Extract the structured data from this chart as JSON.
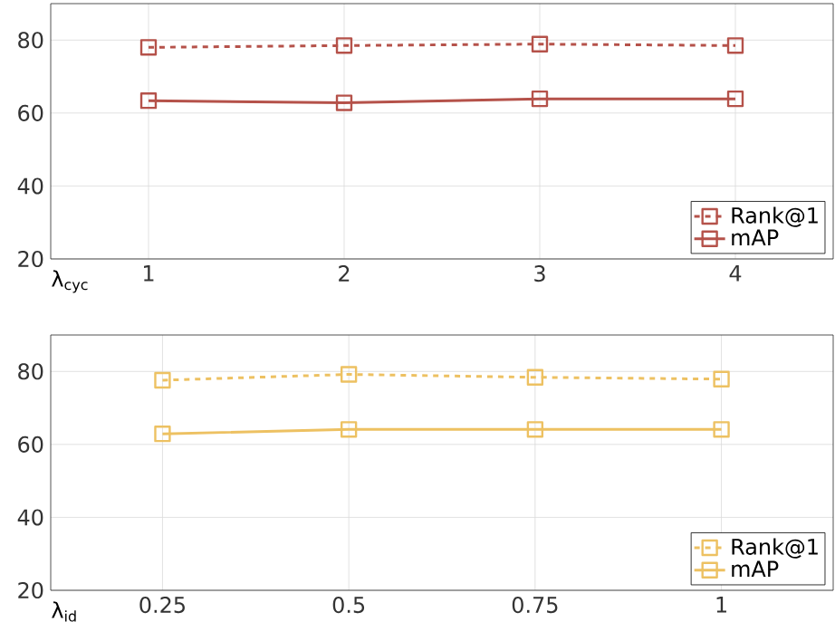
{
  "chart_data": [
    {
      "type": "line",
      "xlabel": "λ$_{cyc}$",
      "x": [
        1,
        2,
        3,
        4
      ],
      "xlim": [
        0.5,
        4.5
      ],
      "xticks": [
        1,
        2,
        3,
        4
      ],
      "ylim": [
        20,
        90
      ],
      "yticks": [
        20,
        40,
        60,
        80
      ],
      "grid": true,
      "legend": "bottom right",
      "marker": "square",
      "series": [
        {
          "name": "Rank@1",
          "color": "#b5524a",
          "line_style": "dashed",
          "values": [
            78.0,
            78.5,
            78.9,
            78.5
          ]
        },
        {
          "name": "mAP",
          "color": "#b5524a",
          "line_style": "solid",
          "values": [
            63.4,
            62.8,
            63.9,
            63.9
          ]
        }
      ]
    },
    {
      "type": "line",
      "xlabel": "λ$_{id}$",
      "x": [
        0.25,
        0.5,
        0.75,
        1
      ],
      "xlim": [
        0.1,
        1.15
      ],
      "xticks": [
        0.25,
        0.5,
        0.75,
        1
      ],
      "ylim": [
        20,
        90
      ],
      "yticks": [
        20,
        40,
        60,
        80
      ],
      "grid": true,
      "legend": "bottom right",
      "marker": "square",
      "series": [
        {
          "name": "Rank@1",
          "color": "#edc162",
          "line_style": "dashed",
          "values": [
            77.6,
            79.2,
            78.4,
            77.9
          ]
        },
        {
          "name": "mAP",
          "color": "#edc162",
          "line_style": "solid",
          "values": [
            62.9,
            64.1,
            64.1,
            64.1
          ]
        }
      ]
    }
  ]
}
